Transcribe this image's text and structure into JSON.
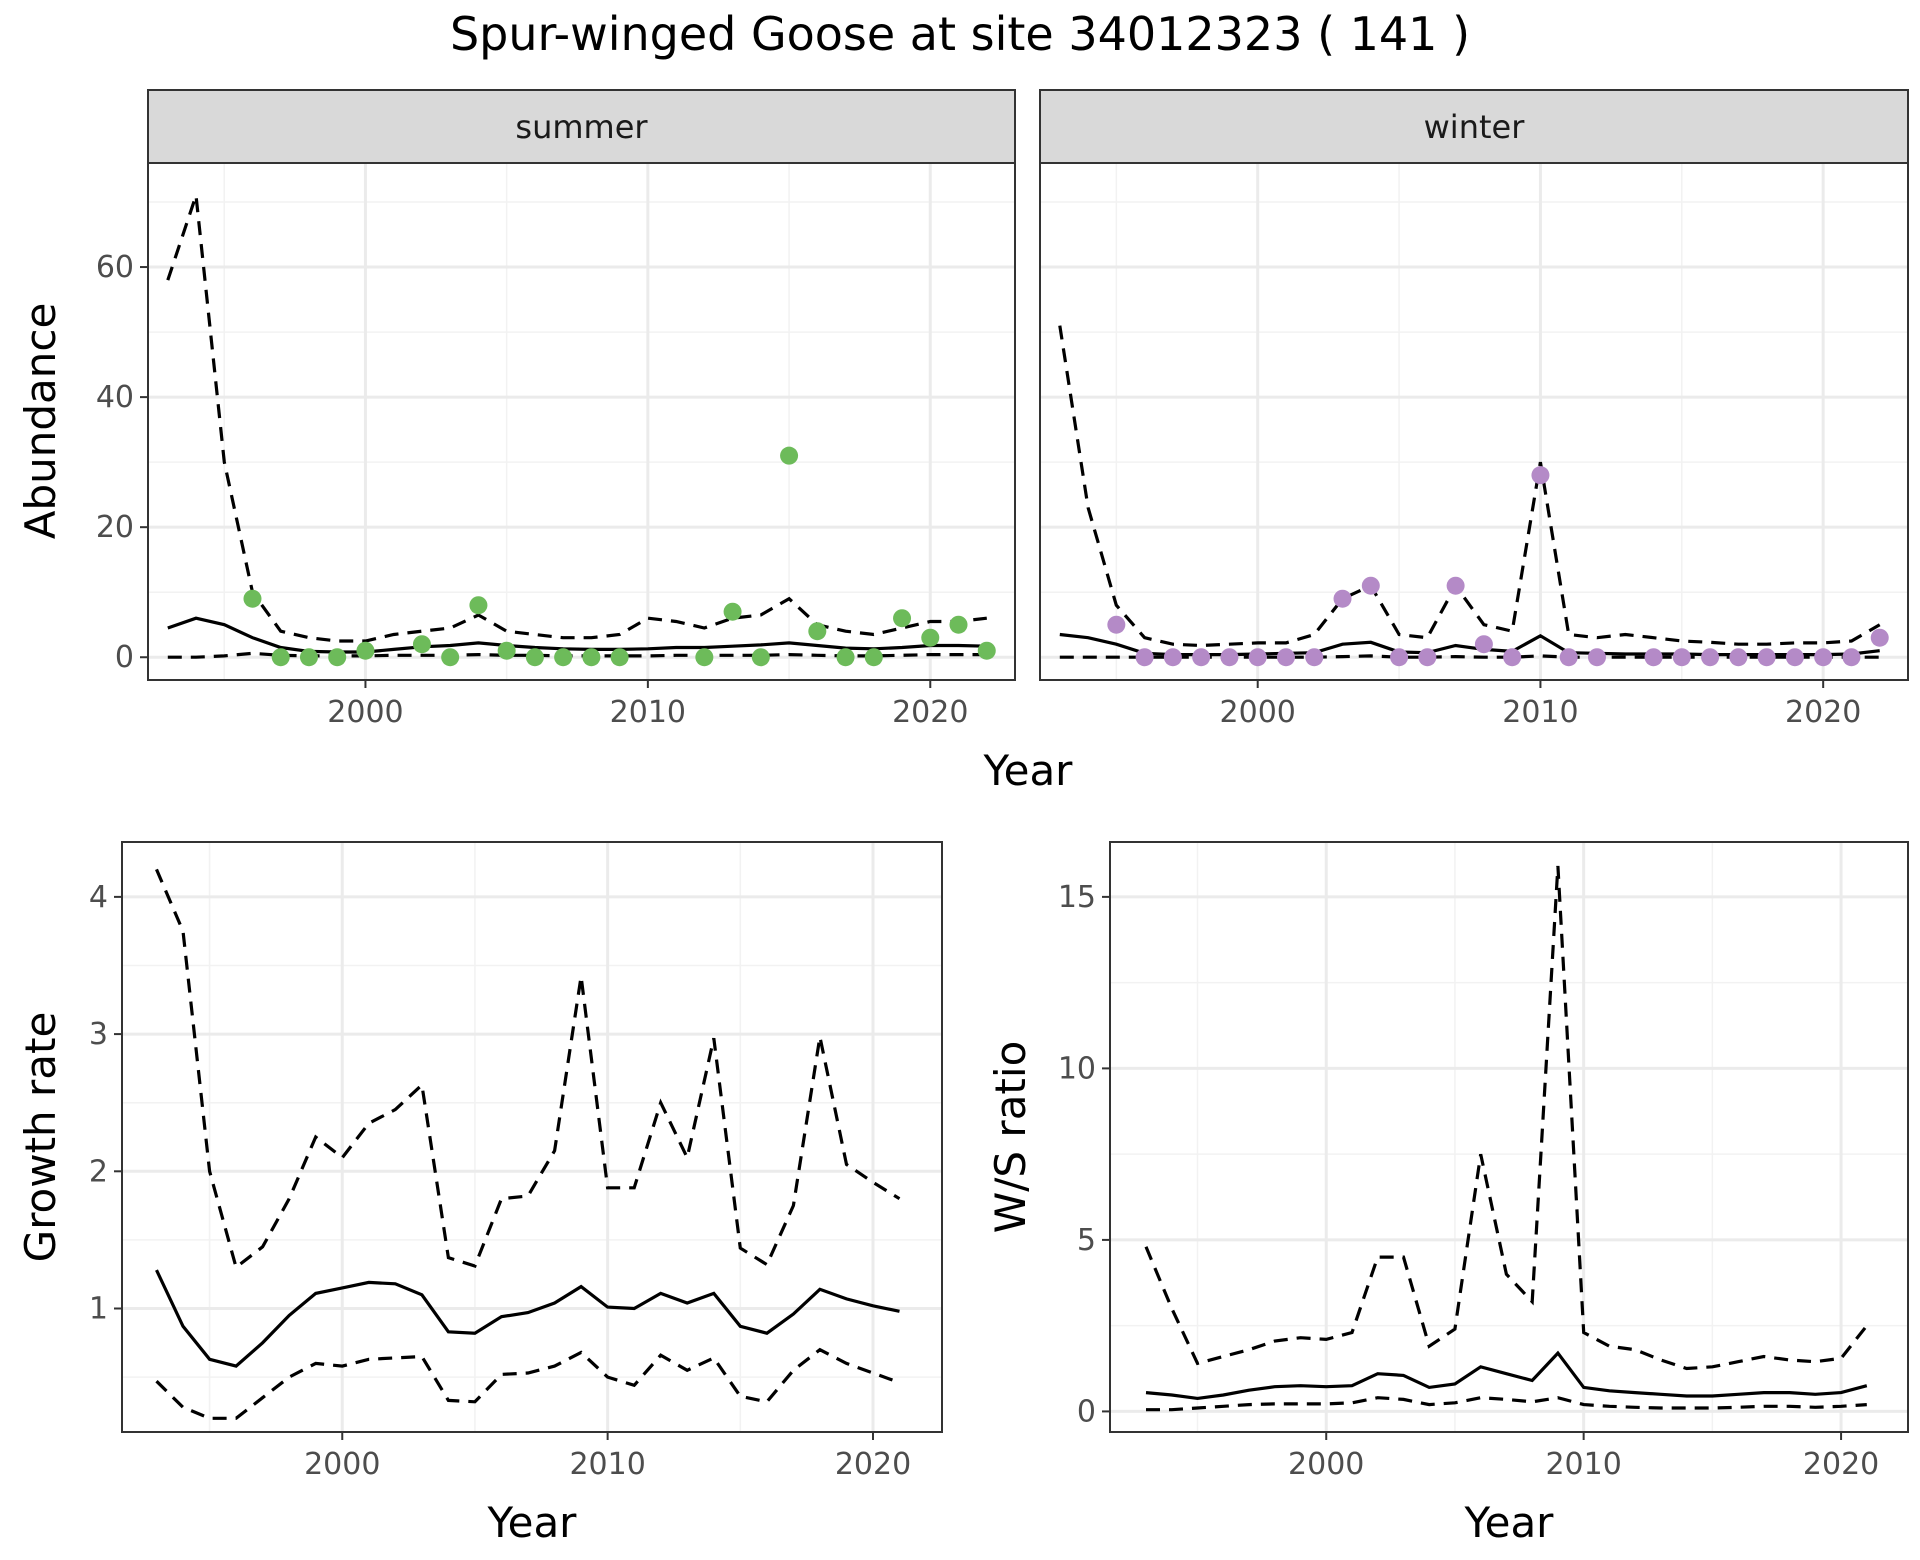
{
  "title": "Spur-winged Goose at site 34012323 ( 141 )",
  "colors": {
    "summer_points": "#6dbb5a",
    "winter_points": "#b48ac7",
    "lines": "#000000"
  },
  "chart_data": [
    {
      "id": "abundance",
      "type": "line+scatter",
      "facets": [
        "summer",
        "winter"
      ],
      "ylabel": "Abundance",
      "xlabel": "Year",
      "xlim": [
        1992.3,
        2023
      ],
      "ylim": [
        -3.5,
        76
      ],
      "xticks": [
        2000,
        2010,
        2020
      ],
      "yticks": [
        0,
        20,
        40,
        60
      ],
      "panels": [
        {
          "facet": "summer",
          "point_color": "#6dbb5a",
          "years": [
            1993,
            1994,
            1995,
            1996,
            1997,
            1998,
            1999,
            2000,
            2001,
            2002,
            2003,
            2004,
            2005,
            2006,
            2007,
            2008,
            2009,
            2010,
            2011,
            2012,
            2013,
            2014,
            2015,
            2016,
            2017,
            2018,
            2019,
            2020,
            2021,
            2022
          ],
          "mean": [
            4.5,
            6,
            5,
            3,
            1.5,
            0.9,
            0.8,
            0.8,
            1.2,
            1.6,
            1.8,
            2.2,
            1.8,
            1.5,
            1.3,
            1.2,
            1.2,
            1.3,
            1.5,
            1.5,
            1.7,
            1.9,
            2.2,
            1.8,
            1.4,
            1.3,
            1.5,
            1.8,
            1.8,
            1.7
          ],
          "upper": [
            58,
            71,
            30,
            10,
            4,
            3,
            2.5,
            2.5,
            3.5,
            4,
            4.5,
            6.5,
            4,
            3.5,
            3,
            3,
            3.5,
            6,
            5.5,
            4.5,
            6,
            6.5,
            9,
            5,
            4,
            3.5,
            4.5,
            5.5,
            5.5,
            6
          ],
          "lower": [
            0,
            0,
            0.2,
            0.6,
            0.3,
            0.2,
            0.2,
            0.2,
            0.3,
            0.3,
            0.3,
            0.4,
            0.3,
            0.3,
            0.2,
            0.2,
            0.2,
            0.2,
            0.3,
            0.3,
            0.3,
            0.3,
            0.4,
            0.3,
            0.2,
            0.2,
            0.3,
            0.4,
            0.4,
            0.4
          ],
          "obs_years": [
            1996,
            1997,
            1998,
            1999,
            2000,
            2002,
            2003,
            2004,
            2005,
            2006,
            2007,
            2008,
            2009,
            2012,
            2013,
            2014,
            2015,
            2016,
            2017,
            2018,
            2019,
            2020,
            2021,
            2022
          ],
          "obs_values": [
            9,
            0,
            0,
            0,
            1,
            2,
            0,
            8,
            1,
            0,
            0,
            0,
            0,
            0,
            7,
            0,
            31,
            4,
            0,
            0,
            6,
            3,
            5,
            1
          ]
        },
        {
          "facet": "winter",
          "point_color": "#b48ac7",
          "years": [
            1993,
            1994,
            1995,
            1996,
            1997,
            1998,
            1999,
            2000,
            2001,
            2002,
            2003,
            2004,
            2005,
            2006,
            2007,
            2008,
            2009,
            2010,
            2011,
            2012,
            2013,
            2014,
            2015,
            2016,
            2017,
            2018,
            2019,
            2020,
            2021,
            2022
          ],
          "mean": [
            3.5,
            3,
            2,
            0.6,
            0.4,
            0.4,
            0.4,
            0.5,
            0.6,
            0.7,
            2,
            2.3,
            0.8,
            0.7,
            1.8,
            1.2,
            0.9,
            3.3,
            0.7,
            0.6,
            0.5,
            0.5,
            0.5,
            0.4,
            0.4,
            0.4,
            0.4,
            0.4,
            0.5,
            1
          ],
          "upper": [
            51,
            23,
            8,
            3,
            2,
            1.8,
            2,
            2.2,
            2.2,
            3.5,
            9,
            11,
            3.5,
            3,
            11,
            5,
            4,
            30,
            3.5,
            3,
            3.5,
            3,
            2.5,
            2.3,
            2,
            2,
            2.2,
            2.2,
            2.5,
            5
          ],
          "lower": [
            0,
            0,
            0,
            0,
            0,
            0,
            0,
            0,
            0,
            0,
            0.1,
            0.2,
            0,
            0,
            0.1,
            0,
            0,
            0.2,
            0,
            0,
            0,
            0,
            0,
            0,
            0,
            0,
            0,
            0,
            0,
            0
          ],
          "obs_years": [
            1995,
            1996,
            1997,
            1998,
            1999,
            2000,
            2001,
            2002,
            2003,
            2004,
            2005,
            2006,
            2007,
            2008,
            2009,
            2010,
            2011,
            2012,
            2014,
            2015,
            2016,
            2017,
            2018,
            2019,
            2020,
            2021,
            2022
          ],
          "obs_values": [
            5,
            0,
            0,
            0,
            0,
            0,
            0,
            0,
            9,
            11,
            0,
            0,
            11,
            2,
            0,
            28,
            0,
            0,
            0,
            0,
            0,
            0,
            0,
            0,
            0,
            0,
            3
          ]
        }
      ]
    },
    {
      "id": "growth-rate",
      "type": "line",
      "ylabel": "Growth rate",
      "xlabel": "Year",
      "xlim": [
        1991.7,
        2022.6
      ],
      "ylim": [
        0.1,
        4.4
      ],
      "xticks": [
        2000,
        2010,
        2020
      ],
      "yticks": [
        1,
        2,
        3,
        4
      ],
      "years": [
        1993,
        1994,
        1995,
        1996,
        1997,
        1998,
        1999,
        2000,
        2001,
        2002,
        2003,
        2004,
        2005,
        2006,
        2007,
        2008,
        2009,
        2010,
        2011,
        2012,
        2013,
        2014,
        2015,
        2016,
        2017,
        2018,
        2019,
        2020,
        2021
      ],
      "mean": [
        1.28,
        0.87,
        0.63,
        0.58,
        0.75,
        0.95,
        1.11,
        1.15,
        1.19,
        1.18,
        1.1,
        0.83,
        0.82,
        0.94,
        0.97,
        1.04,
        1.16,
        1.01,
        1.0,
        1.11,
        1.04,
        1.11,
        0.87,
        0.82,
        0.96,
        1.14,
        1.07,
        1.02,
        0.98
      ],
      "upper": [
        4.2,
        3.75,
        2.0,
        1.3,
        1.45,
        1.8,
        2.25,
        2.1,
        2.35,
        2.45,
        2.63,
        1.37,
        1.31,
        1.8,
        1.82,
        2.15,
        3.42,
        1.88,
        1.88,
        2.5,
        2.1,
        2.97,
        1.44,
        1.32,
        1.75,
        2.98,
        2.05,
        1.92,
        1.8
      ],
      "lower": [
        0.47,
        0.28,
        0.2,
        0.2,
        0.35,
        0.5,
        0.6,
        0.58,
        0.63,
        0.64,
        0.65,
        0.33,
        0.32,
        0.52,
        0.53,
        0.58,
        0.68,
        0.5,
        0.44,
        0.66,
        0.55,
        0.64,
        0.36,
        0.32,
        0.55,
        0.7,
        0.6,
        0.53,
        0.46
      ]
    },
    {
      "id": "ws-ratio",
      "type": "line",
      "ylabel": "W/S ratio",
      "xlabel": "Year",
      "xlim": [
        1991.6,
        2022.6
      ],
      "ylim": [
        -0.6,
        16.6
      ],
      "xticks": [
        2000,
        2010,
        2020
      ],
      "yticks": [
        0,
        5,
        10,
        15
      ],
      "years": [
        1993,
        1994,
        1995,
        1996,
        1997,
        1998,
        1999,
        2000,
        2001,
        2002,
        2003,
        2004,
        2005,
        2006,
        2007,
        2008,
        2009,
        2010,
        2011,
        2012,
        2013,
        2014,
        2015,
        2016,
        2017,
        2018,
        2019,
        2020,
        2021
      ],
      "mean": [
        0.55,
        0.48,
        0.38,
        0.48,
        0.62,
        0.72,
        0.75,
        0.72,
        0.75,
        1.1,
        1.05,
        0.7,
        0.8,
        1.3,
        1.1,
        0.9,
        1.7,
        0.7,
        0.6,
        0.55,
        0.5,
        0.45,
        0.45,
        0.5,
        0.55,
        0.55,
        0.5,
        0.55,
        0.75
      ],
      "upper": [
        4.8,
        3.0,
        1.4,
        1.6,
        1.8,
        2.05,
        2.15,
        2.1,
        2.3,
        4.5,
        4.5,
        1.9,
        2.4,
        7.5,
        4.0,
        3.2,
        15.9,
        2.3,
        1.9,
        1.8,
        1.5,
        1.25,
        1.3,
        1.45,
        1.6,
        1.5,
        1.45,
        1.55,
        2.5
      ],
      "lower": [
        0.05,
        0.05,
        0.1,
        0.15,
        0.2,
        0.22,
        0.22,
        0.22,
        0.25,
        0.4,
        0.35,
        0.2,
        0.25,
        0.4,
        0.35,
        0.28,
        0.4,
        0.2,
        0.15,
        0.12,
        0.1,
        0.1,
        0.1,
        0.12,
        0.15,
        0.15,
        0.12,
        0.15,
        0.2
      ]
    }
  ]
}
